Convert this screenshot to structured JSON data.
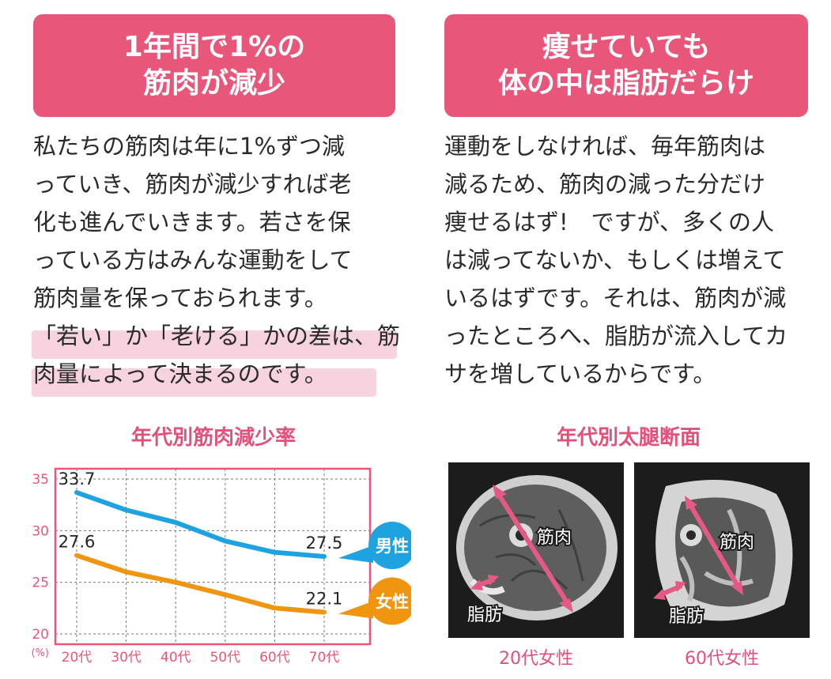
{
  "left": {
    "header": [
      "1年間で1%の",
      "筋肉が減少"
    ],
    "body": [
      "私たちの筋肉は年に1%ずつ減",
      "っていき、筋肉が減少すれば老",
      "化も進んでいきます。若さを保",
      "っている方はみんな運動をして",
      "筋肉量を保っておられます。",
      "「若い」か「老ける」かの差は、筋",
      "肉量によって決まるのです。"
    ]
  },
  "right": {
    "header": [
      "痩せていても",
      "体の中は脂肪だらけ"
    ],
    "body": [
      "運動をしなければ、毎年筋肉は",
      "減るため、筋肉の減った分だけ",
      "痩せるはず!　ですが、多くの人",
      "は減ってないか、もしくは増えて",
      "いるはずです。それは、筋肉が減",
      "ったところへ、脂肪が流入してカ",
      "サを増しているからです。"
    ]
  },
  "chart_title": "年代別筋肉減少率",
  "chart_data": {
    "type": "line",
    "title": "年代別筋肉減少率",
    "categories": [
      "20代",
      "30代",
      "40代",
      "50代",
      "60代",
      "70代"
    ],
    "ylim": [
      19,
      36
    ],
    "yticks": [
      35,
      30,
      25,
      20
    ],
    "yunit": "(%)",
    "grid": true,
    "series": [
      {
        "name": "男性",
        "color": "#1fa3e0",
        "values": [
          33.7,
          32.0,
          30.8,
          29.0,
          27.9,
          27.5
        ]
      },
      {
        "name": "女性",
        "color": "#f0950f",
        "values": [
          27.6,
          26.0,
          25.0,
          23.8,
          22.5,
          22.1
        ]
      }
    ],
    "data_labels": [
      {
        "series": 0,
        "index": 0,
        "text": "33.7"
      },
      {
        "series": 0,
        "index": 5,
        "text": "27.5"
      },
      {
        "series": 1,
        "index": 0,
        "text": "27.6"
      },
      {
        "series": 1,
        "index": 5,
        "text": "22.1"
      }
    ]
  },
  "images": {
    "title": "年代別太腿断面",
    "muscle_label": "筋肉",
    "fat_label": "脂肪",
    "caption_left": "20代女性",
    "caption_right": "60代女性"
  },
  "colors": {
    "accent": "#e8577a",
    "male": "#1fa3e0",
    "female": "#f0950f",
    "highlight": "#f7d3e0",
    "arrow": "#e45a84"
  }
}
